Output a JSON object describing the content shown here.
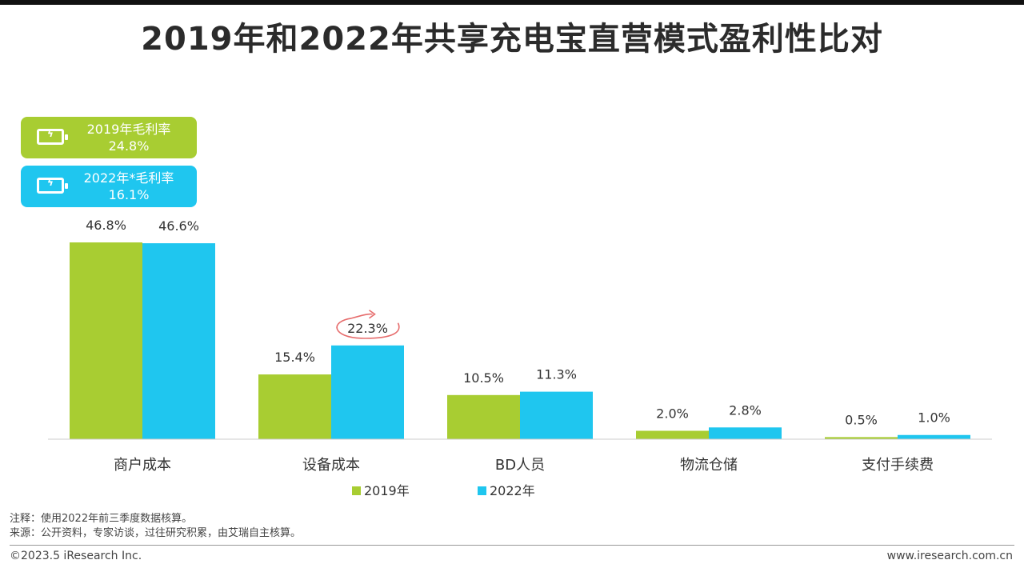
{
  "title": "2019年和2022年共享充电宝直营模式盈利性比对",
  "colors": {
    "s2019": "#a8cd32",
    "s2022": "#1fc6ef",
    "highlight": "#e66c6c",
    "axis": "#cccccc"
  },
  "badges": [
    {
      "icon": "battery-charging-icon",
      "line1": "2019年毛利率",
      "line2": "24.8%"
    },
    {
      "icon": "battery-charging-icon",
      "line1": "2022年*毛利率",
      "line2": "16.1%"
    }
  ],
  "chart_data": {
    "type": "bar",
    "title": "2019年和2022年共享充电宝直营模式盈利性比对",
    "categories": [
      "商户成本",
      "设备成本",
      "BD人员",
      "物流仓储",
      "支付手续费"
    ],
    "series": [
      {
        "name": "2019年",
        "values": [
          46.8,
          15.4,
          10.5,
          2.0,
          0.5
        ],
        "labels": [
          "46.8%",
          "15.4%",
          "10.5%",
          "2.0%",
          "0.5%"
        ]
      },
      {
        "name": "2022年",
        "values": [
          46.6,
          22.3,
          11.3,
          2.8,
          1.0
        ],
        "labels": [
          "46.6%",
          "22.3%",
          "11.3%",
          "2.8%",
          "1.0%"
        ]
      }
    ],
    "highlight": {
      "series": 1,
      "category": 1
    },
    "value_unit": "%",
    "legend_position": "bottom",
    "grid": false
  },
  "legend": [
    "2019年",
    "2022年"
  ],
  "notes": {
    "line1": "注释：使用2022年前三季度数据核算。",
    "line2": "来源：公开资料，专家访谈，过往研究积累，由艾瑞自主核算。"
  },
  "footer": {
    "copyright": "©2023.5 iResearch Inc.",
    "website": "www.iresearch.com.cn"
  }
}
